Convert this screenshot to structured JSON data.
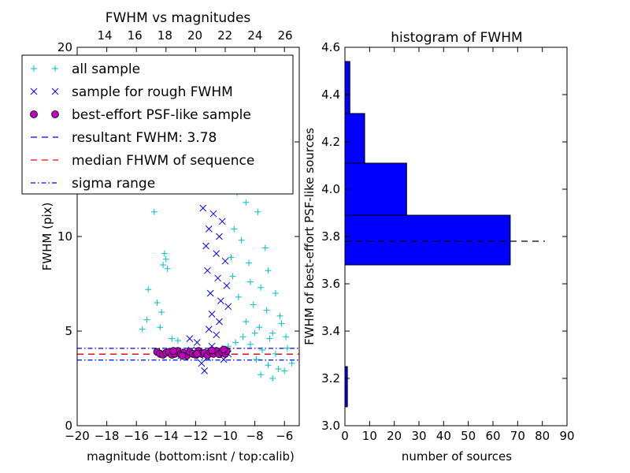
{
  "chart_data": [
    {
      "type": "scatter",
      "title": "FWHM vs magnitudes",
      "xlabel": "magnitude (bottom:isnt / top:calib)",
      "ylabel": "FWHM (pix)",
      "xlim": [
        -20,
        -5
      ],
      "ylim": [
        0,
        20
      ],
      "x_ticks": [
        -20,
        -18,
        -16,
        -14,
        -12,
        -10,
        -8,
        -6
      ],
      "x_tick_labels": [
        "−20",
        "−18",
        "−16",
        "−14",
        "−12",
        "−10",
        "−8",
        "−6"
      ],
      "y_ticks": [
        0,
        5,
        10,
        15,
        20
      ],
      "y_tick_labels": [
        "0",
        "5",
        "10",
        "15",
        "20"
      ],
      "top_x_ticks": [
        14,
        16,
        18,
        20,
        22,
        24,
        26
      ],
      "top_x_tick_labels": [
        "14",
        "16",
        "18",
        "20",
        "22",
        "24",
        "26"
      ],
      "grid": false,
      "legend_placement": "top-left",
      "series": [
        {
          "name": "all sample",
          "marker": "+",
          "color": "#00bfbf",
          "points": [
            [
              -14.8,
              11.3
            ],
            [
              -14.2,
              8.5
            ],
            [
              -14.1,
              9.1
            ],
            [
              -14.0,
              8.8
            ],
            [
              -13.9,
              8.3
            ],
            [
              -15.2,
              7.2
            ],
            [
              -14.6,
              6.5
            ],
            [
              -14.3,
              6.0
            ],
            [
              -14.4,
              5.2
            ],
            [
              -15.6,
              5.1
            ],
            [
              -15.3,
              5.6
            ],
            [
              -13.6,
              4.6
            ],
            [
              -13.2,
              4.5
            ],
            [
              -8.2,
              18.2
            ],
            [
              -7.4,
              15.0
            ],
            [
              -8.8,
              13.2
            ],
            [
              -7.0,
              14.2
            ],
            [
              -9.2,
              12.3
            ],
            [
              -8.6,
              11.8
            ],
            [
              -7.8,
              11.3
            ],
            [
              -9.4,
              10.4
            ],
            [
              -8.9,
              9.8
            ],
            [
              -7.3,
              9.4
            ],
            [
              -9.6,
              8.9
            ],
            [
              -8.4,
              8.6
            ],
            [
              -7.1,
              8.2
            ],
            [
              -9.5,
              7.9
            ],
            [
              -8.3,
              7.6
            ],
            [
              -7.6,
              7.3
            ],
            [
              -6.6,
              7.0
            ],
            [
              -9.1,
              6.8
            ],
            [
              -8.1,
              6.4
            ],
            [
              -7.2,
              6.1
            ],
            [
              -6.3,
              5.8
            ],
            [
              -8.6,
              5.5
            ],
            [
              -7.7,
              5.2
            ],
            [
              -6.8,
              4.9
            ],
            [
              -5.9,
              4.7
            ],
            [
              -8.3,
              4.3
            ],
            [
              -7.5,
              4.0
            ],
            [
              -6.6,
              3.8
            ],
            [
              -7.9,
              3.5
            ],
            [
              -7.1,
              3.2
            ],
            [
              -6.4,
              3.0
            ],
            [
              -7.6,
              2.7
            ],
            [
              -6.8,
              2.5
            ],
            [
              -6.0,
              2.9
            ],
            [
              -5.5,
              3.3
            ],
            [
              -5.8,
              4.1
            ],
            [
              -6.2,
              5.4
            ],
            [
              -7.0,
              4.6
            ],
            [
              -8.0,
              4.9
            ],
            [
              -8.8,
              4.7
            ],
            [
              -9.3,
              4.4
            ],
            [
              -9.8,
              4.2
            ],
            [
              -10.2,
              4.1
            ],
            [
              -10.6,
              4.0
            ],
            [
              -11.0,
              3.9
            ]
          ]
        },
        {
          "name": "sample for rough FWHM",
          "marker": "x",
          "color": "#0000ff",
          "points": [
            [
              -11.5,
              11.5
            ],
            [
              -10.8,
              11.2
            ],
            [
              -10.2,
              10.8
            ],
            [
              -11.1,
              10.4
            ],
            [
              -10.4,
              10.0
            ],
            [
              -11.3,
              9.5
            ],
            [
              -10.6,
              9.1
            ],
            [
              -10.0,
              8.7
            ],
            [
              -11.2,
              8.2
            ],
            [
              -10.5,
              7.8
            ],
            [
              -9.9,
              7.4
            ],
            [
              -11.0,
              7.0
            ],
            [
              -10.3,
              6.6
            ],
            [
              -9.8,
              6.3
            ],
            [
              -10.9,
              5.9
            ],
            [
              -10.4,
              5.5
            ],
            [
              -11.1,
              5.1
            ],
            [
              -10.6,
              4.8
            ],
            [
              -11.9,
              4.4
            ],
            [
              -12.4,
              4.6
            ],
            [
              -12.3,
              4.0
            ],
            [
              -12.7,
              3.9
            ],
            [
              -11.7,
              3.7
            ],
            [
              -11.2,
              3.6
            ],
            [
              -11.6,
              3.3
            ],
            [
              -11.4,
              2.9
            ],
            [
              -10.1,
              3.5
            ],
            [
              -10.9,
              4.2
            ],
            [
              -9.8,
              3.8
            ],
            [
              -13.0,
              3.7
            ]
          ]
        },
        {
          "name": "best-effort PSF-like sample",
          "marker": "o",
          "color": "#bf00bf",
          "points": [
            [
              -14.6,
              3.9
            ],
            [
              -14.4,
              3.8
            ],
            [
              -14.2,
              3.75
            ],
            [
              -14.0,
              3.85
            ],
            [
              -13.8,
              3.9
            ],
            [
              -13.6,
              3.75
            ],
            [
              -13.4,
              3.8
            ],
            [
              -13.2,
              3.95
            ],
            [
              -13.0,
              3.78
            ],
            [
              -12.8,
              3.85
            ],
            [
              -12.6,
              3.7
            ],
            [
              -12.4,
              3.9
            ],
            [
              -12.2,
              3.8
            ],
            [
              -12.0,
              3.75
            ],
            [
              -11.8,
              3.95
            ],
            [
              -11.6,
              3.8
            ],
            [
              -11.4,
              3.85
            ],
            [
              -11.2,
              3.72
            ],
            [
              -11.0,
              3.9
            ],
            [
              -10.8,
              3.8
            ],
            [
              -10.6,
              3.95
            ],
            [
              -10.4,
              3.78
            ],
            [
              -10.2,
              3.88
            ],
            [
              -10.0,
              3.8
            ],
            [
              -9.9,
              3.95
            ],
            [
              -13.5,
              3.95
            ],
            [
              -12.9,
              3.7
            ],
            [
              -11.9,
              3.8
            ],
            [
              -10.9,
              3.98
            ],
            [
              -10.1,
              4.02
            ]
          ]
        }
      ],
      "reference_lines": [
        {
          "name": "resultant FWHM: 3.78",
          "y": 3.78,
          "style": "dashed",
          "color": "#0000ff"
        },
        {
          "name": "median FHWM of sequence",
          "y": 3.78,
          "style": "dashed",
          "color": "#ff0000"
        },
        {
          "name": "sigma range",
          "y": [
            3.47,
            4.09
          ],
          "style": "dashdot",
          "color": "#0000ff"
        }
      ]
    },
    {
      "type": "bar",
      "orientation": "horizontal",
      "title": "histogram of FWHM",
      "xlabel": "number of sources",
      "ylabel": "FWHM of best-effort PSF-like sources",
      "xlim": [
        0,
        90
      ],
      "ylim": [
        3.0,
        4.6
      ],
      "x_ticks": [
        0,
        10,
        20,
        30,
        40,
        50,
        60,
        70,
        80,
        90
      ],
      "y_ticks": [
        3.0,
        3.2,
        3.4,
        3.6,
        3.8,
        4.0,
        4.2,
        4.4,
        4.6
      ],
      "y_tick_labels": [
        "3.0",
        "3.2",
        "3.4",
        "3.6",
        "3.8",
        "4.0",
        "4.2",
        "4.4",
        "4.6"
      ],
      "color": "#0000ff",
      "bins": [
        {
          "y0": 3.08,
          "y1": 3.25,
          "count": 1
        },
        {
          "y0": 3.68,
          "y1": 3.89,
          "count": 67
        },
        {
          "y0": 3.89,
          "y1": 4.11,
          "count": 25
        },
        {
          "y0": 4.11,
          "y1": 4.32,
          "count": 8
        },
        {
          "y0": 4.32,
          "y1": 4.54,
          "count": 2
        }
      ],
      "reference_line": {
        "y": 3.78,
        "style": "dashed",
        "color": "#000000",
        "x_extent": [
          0,
          81
        ]
      },
      "grid": false
    }
  ]
}
